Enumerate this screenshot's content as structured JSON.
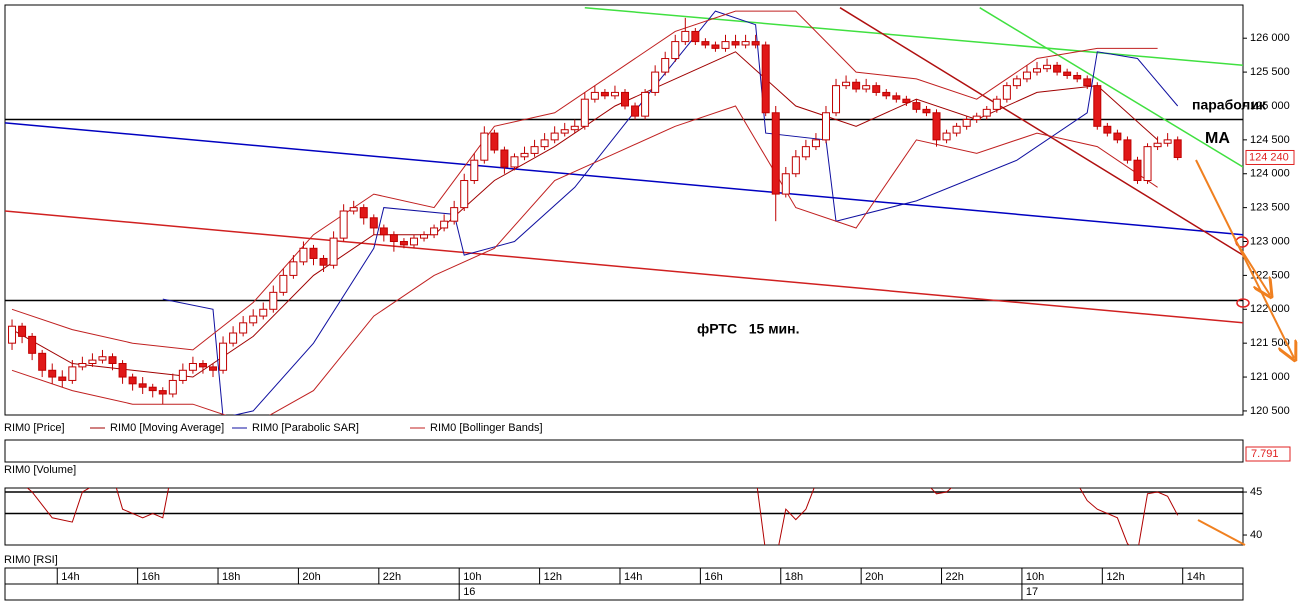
{
  "chart_data": [
    {
      "type": "candlestick",
      "xlim": [
        -0.7,
        122.5
      ],
      "ylim": [
        120440,
        126490
      ],
      "yticks": [
        {
          "value": 126000,
          "label": "126 000"
        },
        {
          "value": 125500,
          "label": "125 500"
        },
        {
          "value": 125000,
          "label": "125 000"
        },
        {
          "value": 124500,
          "label": "124 500"
        },
        {
          "value": 124000,
          "label": "124 000"
        },
        {
          "value": 123500,
          "label": "123 500"
        },
        {
          "value": 123000,
          "label": "123 000"
        },
        {
          "value": 122500,
          "label": "122 500"
        },
        {
          "value": 122000,
          "label": "122 000"
        },
        {
          "value": 121500,
          "label": "121 500"
        },
        {
          "value": 121000,
          "label": "121 000"
        },
        {
          "value": 120500,
          "label": "120 500"
        }
      ],
      "xticks": [
        {
          "value": 4.5,
          "label": "14h"
        },
        {
          "value": 12.5,
          "label": "16h"
        },
        {
          "value": 20.5,
          "label": "18h"
        },
        {
          "value": 28.5,
          "label": "20h"
        },
        {
          "value": 36.5,
          "label": "22h"
        },
        {
          "value": 44.5,
          "label": "10h"
        },
        {
          "value": 52.5,
          "label": "12h"
        },
        {
          "value": 60.5,
          "label": "14h"
        },
        {
          "value": 68.5,
          "label": "16h"
        },
        {
          "value": 76.5,
          "label": "18h"
        },
        {
          "value": 84.5,
          "label": "20h"
        },
        {
          "value": 92.5,
          "label": "22h"
        },
        {
          "value": 100.5,
          "label": "10h"
        },
        {
          "value": 108.5,
          "label": "12h"
        },
        {
          "value": 116.5,
          "label": "14h"
        }
      ],
      "dates": [
        {
          "value": 44.5,
          "label": "16"
        },
        {
          "value": 100.5,
          "label": "17"
        }
      ],
      "up_color": "#ffffff",
      "down_color": "#e01818",
      "edge_color": "#c00000",
      "last_price": {
        "value": 124240,
        "label": "124 240"
      },
      "annotations": [
        "параболик",
        "MA",
        "фРТС   15 мин."
      ],
      "levels": [
        124800,
        122130
      ],
      "trendlines": [
        {
          "color": "#0000c0",
          "x": [
            -0.7,
            122.5
          ],
          "values": [
            124750,
            123100
          ]
        },
        {
          "color": "#d02020",
          "x": [
            -0.7,
            122.5
          ],
          "values": [
            123450,
            121800
          ]
        },
        {
          "color": "#40e040",
          "x": [
            57,
            122.5
          ],
          "values": [
            126450,
            125600
          ]
        },
        {
          "color": "#40e040",
          "x": [
            96.3,
            122.5
          ],
          "values": [
            126450,
            124100
          ]
        },
        {
          "color": "#b01010",
          "x": [
            82.4,
            122.5
          ],
          "values": [
            126450,
            122800
          ]
        }
      ],
      "series": [
        {
          "name": "RIM0 [Price]",
          "color": "#c00000"
        },
        {
          "name": "RIM0 [Moving Average]",
          "color": "#a00000",
          "x": [
            0,
            6,
            12,
            18,
            24,
            30,
            36,
            42,
            48,
            54,
            60,
            66,
            72,
            78,
            84,
            90,
            96,
            102,
            108,
            114
          ],
          "values": [
            121700,
            121200,
            121100,
            121000,
            121600,
            122500,
            123100,
            123100,
            123900,
            124400,
            125000,
            125400,
            125800,
            125000,
            124700,
            125100,
            124800,
            125200,
            125300,
            124500
          ]
        },
        {
          "name": "RIM0 [Parabolic SAR]",
          "color": "#1010a0",
          "x": [
            15,
            20,
            21,
            24,
            30,
            36,
            37,
            44,
            45,
            50,
            56,
            64,
            70,
            74,
            75,
            81,
            82,
            90,
            100,
            107,
            108,
            112,
            116
          ],
          "values": [
            122150,
            122000,
            120400,
            120500,
            121500,
            122900,
            123500,
            123400,
            122800,
            123000,
            123800,
            125300,
            126400,
            126200,
            124600,
            124500,
            123300,
            123600,
            124200,
            124900,
            125800,
            125700,
            125000
          ]
        },
        {
          "name": "RIM0 [Bollinger Bands]",
          "color": "#c02020",
          "x": [
            0,
            6,
            12,
            18,
            24,
            30,
            36,
            42,
            48,
            54,
            60,
            66,
            72,
            78,
            84,
            90,
            96,
            102,
            108,
            114
          ],
          "values": [
            122000,
            121700,
            121500,
            121400,
            122100,
            123100,
            123700,
            123500,
            124700,
            124900,
            125500,
            126100,
            126400,
            126400,
            125500,
            125400,
            125100,
            125700,
            125850,
            125850
          ],
          "lower": [
            121100,
            120800,
            120600,
            120600,
            120300,
            120800,
            121900,
            122500,
            122900,
            123900,
            124300,
            124700,
            125000,
            123500,
            123200,
            124500,
            124300,
            124600,
            124400,
            123800
          ]
        }
      ],
      "ohlc": [
        [
          121500,
          121850,
          121400,
          121750
        ],
        [
          121750,
          121800,
          121500,
          121600
        ],
        [
          121600,
          121650,
          121250,
          121350
        ],
        [
          121350,
          121400,
          121000,
          121100
        ],
        [
          121100,
          121200,
          120900,
          121000
        ],
        [
          121000,
          121100,
          120850,
          120950
        ],
        [
          120950,
          121250,
          120900,
          121150
        ],
        [
          121150,
          121300,
          121100,
          121200
        ],
        [
          121200,
          121350,
          121150,
          121250
        ],
        [
          121250,
          121400,
          121200,
          121300
        ],
        [
          121300,
          121350,
          121100,
          121200
        ],
        [
          121200,
          121250,
          120900,
          121000
        ],
        [
          121000,
          121050,
          120800,
          120900
        ],
        [
          120900,
          121000,
          120750,
          120850
        ],
        [
          120850,
          120900,
          120700,
          120800
        ],
        [
          120800,
          120850,
          120600,
          120750
        ],
        [
          120750,
          121050,
          120700,
          120950
        ],
        [
          120950,
          121200,
          120900,
          121100
        ],
        [
          121100,
          121300,
          121050,
          121200
        ],
        [
          121200,
          121250,
          121050,
          121150
        ],
        [
          121150,
          121200,
          121000,
          121100
        ],
        [
          121100,
          121600,
          121050,
          121500
        ],
        [
          121500,
          121750,
          121450,
          121650
        ],
        [
          121650,
          121900,
          121600,
          121800
        ],
        [
          121800,
          122000,
          121750,
          121900
        ],
        [
          121900,
          122100,
          121850,
          122000
        ],
        [
          122000,
          122350,
          121950,
          122250
        ],
        [
          122250,
          122600,
          122200,
          122500
        ],
        [
          122500,
          122800,
          122450,
          122700
        ],
        [
          122700,
          123000,
          122650,
          122900
        ],
        [
          122900,
          122950,
          122650,
          122750
        ],
        [
          122750,
          122800,
          122550,
          122650
        ],
        [
          122650,
          123150,
          122600,
          123050
        ],
        [
          123050,
          123550,
          123000,
          123450
        ],
        [
          123450,
          123600,
          123400,
          123500
        ],
        [
          123500,
          123550,
          123250,
          123350
        ],
        [
          123350,
          123400,
          123100,
          123200
        ],
        [
          123200,
          123250,
          123000,
          123100
        ],
        [
          123100,
          123150,
          122850,
          123000
        ],
        [
          123000,
          123050,
          122900,
          122950
        ],
        [
          122950,
          123100,
          122900,
          123050
        ],
        [
          123050,
          123150,
          123000,
          123100
        ],
        [
          123100,
          123250,
          123050,
          123200
        ],
        [
          123200,
          123400,
          123150,
          123300
        ],
        [
          123300,
          123600,
          123250,
          123500
        ],
        [
          123500,
          124000,
          123450,
          123900
        ],
        [
          123900,
          124300,
          123850,
          124200
        ],
        [
          124200,
          124700,
          124150,
          124600
        ],
        [
          124600,
          124650,
          124300,
          124350
        ],
        [
          124350,
          124400,
          124000,
          124100
        ],
        [
          124100,
          124300,
          124050,
          124250
        ],
        [
          124250,
          124400,
          124200,
          124300
        ],
        [
          124300,
          124500,
          124250,
          124400
        ],
        [
          124400,
          124600,
          124350,
          124500
        ],
        [
          124500,
          124700,
          124450,
          124600
        ],
        [
          124600,
          124750,
          124550,
          124650
        ],
        [
          124650,
          124800,
          124600,
          124700
        ],
        [
          124700,
          125200,
          124650,
          125100
        ],
        [
          125100,
          125300,
          125050,
          125200
        ],
        [
          125200,
          125250,
          125100,
          125150
        ],
        [
          125150,
          125300,
          125100,
          125200
        ],
        [
          125200,
          125250,
          124950,
          125000
        ],
        [
          125000,
          125050,
          124800,
          124850
        ],
        [
          124850,
          125250,
          124800,
          125200
        ],
        [
          125200,
          125600,
          125150,
          125500
        ],
        [
          125500,
          125800,
          125450,
          125700
        ],
        [
          125700,
          126050,
          125650,
          125950
        ],
        [
          125950,
          126300,
          125900,
          126100
        ],
        [
          126100,
          126150,
          125900,
          125950
        ],
        [
          125950,
          126000,
          125850,
          125900
        ],
        [
          125900,
          125950,
          125800,
          125850
        ],
        [
          125850,
          126050,
          125800,
          125950
        ],
        [
          125950,
          126050,
          125850,
          125900
        ],
        [
          125900,
          126050,
          125850,
          125950
        ],
        [
          125950,
          126050,
          125850,
          125900
        ],
        [
          125900,
          125950,
          124850,
          124900
        ],
        [
          124900,
          125000,
          123300,
          123700
        ],
        [
          123700,
          124100,
          123650,
          124000
        ],
        [
          124000,
          124350,
          123950,
          124250
        ],
        [
          124250,
          124500,
          124200,
          124400
        ],
        [
          124400,
          124600,
          124350,
          124500
        ],
        [
          124500,
          125000,
          124450,
          124900
        ],
        [
          124900,
          125400,
          124850,
          125300
        ],
        [
          125300,
          125450,
          125250,
          125350
        ],
        [
          125350,
          125400,
          125200,
          125250
        ],
        [
          125250,
          125400,
          125200,
          125300
        ],
        [
          125300,
          125350,
          125150,
          125200
        ],
        [
          125200,
          125250,
          125100,
          125150
        ],
        [
          125150,
          125200,
          125050,
          125100
        ],
        [
          125100,
          125150,
          125000,
          125050
        ],
        [
          125050,
          125100,
          124900,
          124950
        ],
        [
          124950,
          125000,
          124850,
          124900
        ],
        [
          124900,
          124950,
          124400,
          124500
        ],
        [
          124500,
          124650,
          124450,
          124600
        ],
        [
          124600,
          124750,
          124550,
          124700
        ],
        [
          124700,
          124850,
          124650,
          124800
        ],
        [
          124800,
          124900,
          124750,
          124850
        ],
        [
          124850,
          125000,
          124800,
          124950
        ],
        [
          124950,
          125150,
          124900,
          125100
        ],
        [
          125100,
          125350,
          125050,
          125300
        ],
        [
          125300,
          125450,
          125250,
          125400
        ],
        [
          125400,
          125600,
          125350,
          125500
        ],
        [
          125500,
          125650,
          125450,
          125550
        ],
        [
          125550,
          125700,
          125500,
          125600
        ],
        [
          125600,
          125650,
          125450,
          125500
        ],
        [
          125500,
          125550,
          125400,
          125450
        ],
        [
          125450,
          125500,
          125350,
          125400
        ],
        [
          125400,
          125450,
          125250,
          125300
        ],
        [
          125300,
          125350,
          124650,
          124700
        ],
        [
          124700,
          124750,
          124550,
          124600
        ],
        [
          124600,
          124650,
          124450,
          124500
        ],
        [
          124500,
          124550,
          124150,
          124200
        ],
        [
          124200,
          124250,
          123850,
          123900
        ],
        [
          123900,
          124450,
          123850,
          124400
        ],
        [
          124400,
          124550,
          124350,
          124450
        ],
        [
          124450,
          124600,
          124400,
          124500
        ],
        [
          124500,
          124550,
          124200,
          124240
        ]
      ]
    },
    {
      "type": "volume",
      "name": "RIM0 [Volume]",
      "last": 7.791
    },
    {
      "type": "line",
      "ylim": [
        38.84,
        45.47
      ],
      "yticks": [
        40,
        45
      ],
      "levels": [
        45,
        42.5
      ],
      "series": [
        {
          "name": "RIM0 [RSI]",
          "color": "#b00000",
          "x": [
            0,
            2,
            4,
            6,
            7,
            10,
            11,
            13,
            14,
            15,
            16,
            74,
            75,
            76,
            77,
            78,
            79,
            80,
            91,
            92,
            93,
            94,
            106,
            107,
            108,
            110,
            111,
            112,
            113,
            114,
            115,
            116
          ],
          "values": [
            47,
            45,
            42,
            41.5,
            45,
            47,
            43,
            42,
            42.5,
            42,
            48,
            47,
            38,
            37,
            43,
            41.8,
            43,
            46,
            46,
            44.8,
            45,
            46,
            46,
            44,
            43,
            42,
            39,
            38,
            44.8,
            45,
            44.5,
            42.3
          ]
        }
      ]
    }
  ]
}
